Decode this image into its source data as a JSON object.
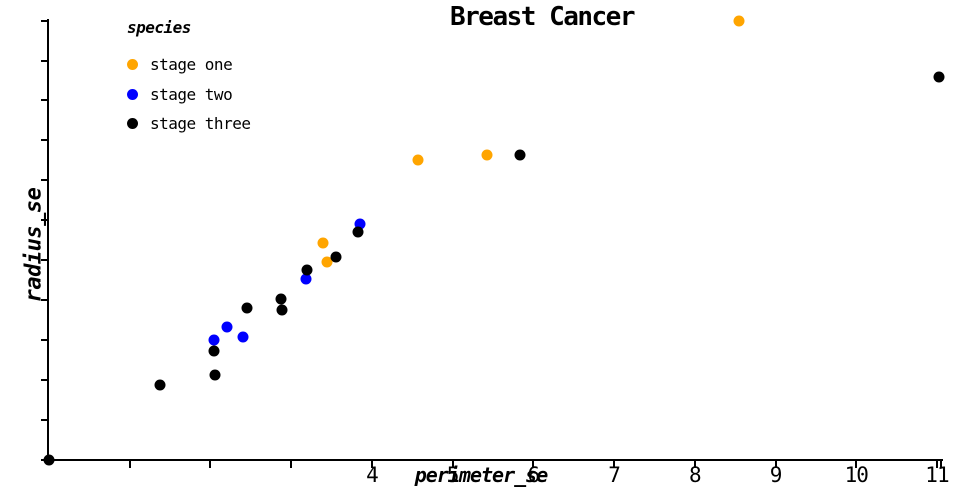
{
  "title": "Breast Cancer",
  "legend": {
    "title": "species",
    "entries": [
      {
        "label": "stage one",
        "color": "#FFA500"
      },
      {
        "label": "stage two",
        "color": "#0000FF"
      },
      {
        "label": "stage three",
        "color": "#000000"
      }
    ]
  },
  "axes": {
    "x_label": "perimeter_se",
    "y_label": "radius_se"
  },
  "chart_data": {
    "type": "scatter",
    "title": "Breast Cancer",
    "xlabel": "perimeter_se",
    "ylabel": "radius_se",
    "legend_title": "species",
    "legend_position": "upper left",
    "grid": false,
    "xlim": [
      0,
      11.05
    ],
    "ylim": [
      0,
      2.76
    ],
    "x_ticks": [
      {
        "value": 1,
        "label": ""
      },
      {
        "value": 2,
        "label": ""
      },
      {
        "value": 3,
        "label": ""
      },
      {
        "value": 4,
        "label": "4"
      },
      {
        "value": 5,
        "label": "5"
      },
      {
        "value": 6,
        "label": "6"
      },
      {
        "value": 7,
        "label": "7"
      },
      {
        "value": 8,
        "label": "8"
      },
      {
        "value": 9,
        "label": "9"
      },
      {
        "value": 10,
        "label": "10"
      },
      {
        "value": 11,
        "label": "11"
      },
      {
        "value": 11.05,
        "label": ""
      }
    ],
    "y_ticks": [
      {
        "value": 0,
        "label": ""
      },
      {
        "value": 0.25,
        "label": ""
      },
      {
        "value": 0.5,
        "label": ""
      },
      {
        "value": 0.75,
        "label": ""
      },
      {
        "value": 1,
        "label": ""
      },
      {
        "value": 1.25,
        "label": ""
      },
      {
        "value": 1.5,
        "label": ""
      },
      {
        "value": 1.75,
        "label": ""
      },
      {
        "value": 2,
        "label": ""
      },
      {
        "value": 2.25,
        "label": ""
      },
      {
        "value": 2.5,
        "label": ""
      },
      {
        "value": 2.75,
        "label": ""
      }
    ],
    "y_tick_labels_visible": false,
    "series": [
      {
        "name": "stage one",
        "color": "#FFA500",
        "points": [
          [
            3.4,
            1.36
          ],
          [
            3.44,
            1.24
          ],
          [
            4.57,
            1.88
          ],
          [
            5.42,
            1.91
          ],
          [
            8.55,
            2.75
          ]
        ]
      },
      {
        "name": "stage two",
        "color": "#0000FF",
        "points": [
          [
            2.05,
            0.75
          ],
          [
            2.21,
            0.83
          ],
          [
            2.4,
            0.77
          ],
          [
            3.18,
            1.13
          ],
          [
            3.85,
            1.48
          ]
        ]
      },
      {
        "name": "stage three",
        "color": "#000000",
        "points": [
          [
            0.0,
            0.0
          ],
          [
            1.38,
            0.47
          ],
          [
            2.06,
            0.53
          ],
          [
            2.04,
            0.68
          ],
          [
            2.45,
            0.95
          ],
          [
            2.88,
            1.01
          ],
          [
            2.89,
            0.94
          ],
          [
            3.19,
            1.19
          ],
          [
            3.56,
            1.27
          ],
          [
            3.83,
            1.43
          ],
          [
            5.84,
            1.91
          ],
          [
            11.03,
            2.4
          ]
        ]
      }
    ]
  }
}
